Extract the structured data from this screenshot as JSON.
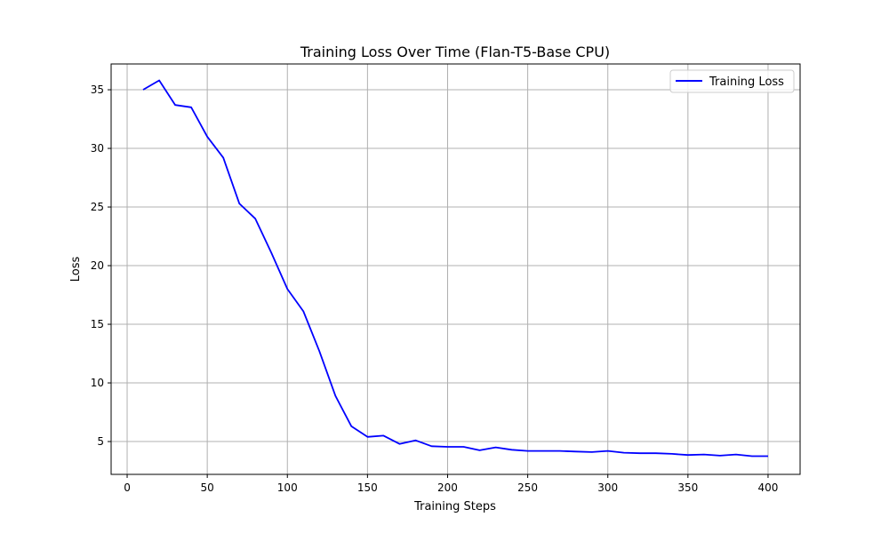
{
  "chart_data": {
    "type": "line",
    "title": "Training Loss Over Time (Flan-T5-Base CPU)",
    "xlabel": "Training Steps",
    "ylabel": "Loss",
    "xlim": [
      -10,
      420
    ],
    "ylim": [
      2.2,
      37.2
    ],
    "xticks": [
      0,
      50,
      100,
      150,
      200,
      250,
      300,
      350,
      400
    ],
    "yticks": [
      5,
      10,
      15,
      20,
      25,
      30,
      35
    ],
    "grid": true,
    "legend_position": "top-right",
    "series": [
      {
        "name": "Training Loss",
        "color": "#0000ff",
        "x": [
          10,
          20,
          30,
          40,
          50,
          60,
          70,
          80,
          90,
          100,
          110,
          120,
          130,
          140,
          150,
          160,
          170,
          180,
          190,
          200,
          210,
          220,
          230,
          240,
          250,
          260,
          270,
          280,
          290,
          300,
          310,
          320,
          330,
          340,
          350,
          360,
          370,
          380,
          390,
          400
        ],
        "y": [
          35.0,
          35.8,
          33.7,
          33.5,
          31.0,
          29.2,
          25.3,
          24.0,
          21.1,
          18.0,
          16.1,
          12.7,
          8.9,
          6.3,
          5.4,
          5.5,
          4.8,
          5.1,
          4.6,
          4.55,
          4.55,
          4.25,
          4.5,
          4.3,
          4.2,
          4.2,
          4.2,
          4.15,
          4.1,
          4.2,
          4.05,
          4.0,
          4.0,
          3.95,
          3.85,
          3.9,
          3.8,
          3.9,
          3.75,
          3.75
        ]
      }
    ]
  }
}
